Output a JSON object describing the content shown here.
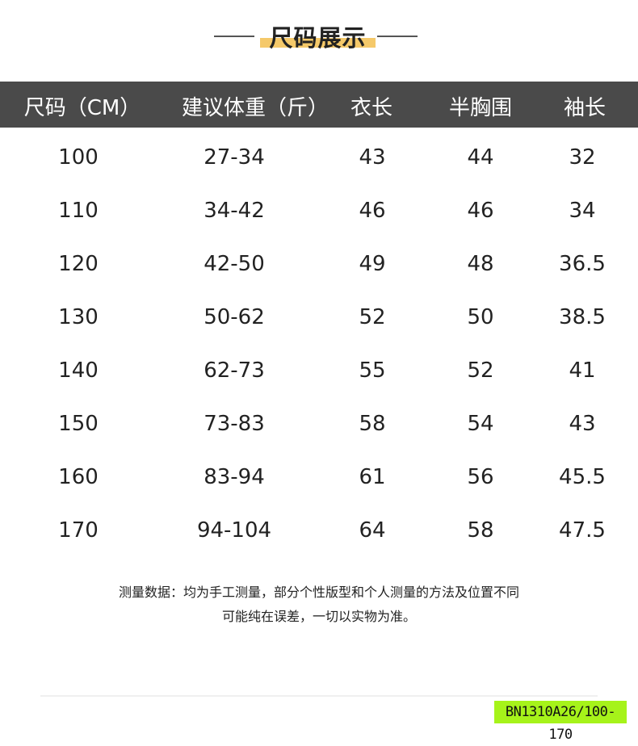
{
  "title": "尺码展示",
  "colors": {
    "header_bg": "#4a4a4a",
    "title_highlight": "#f5c96a",
    "badge_bg": "#a6f31a"
  },
  "table": {
    "headers": [
      "尺码（CM）",
      "建议体重（斤）",
      "衣长",
      "半胸围",
      "袖长"
    ],
    "rows": [
      [
        "100",
        "27-34",
        "43",
        "44",
        "32"
      ],
      [
        "110",
        "34-42",
        "46",
        "46",
        "34"
      ],
      [
        "120",
        "42-50",
        "49",
        "48",
        "36.5"
      ],
      [
        "130",
        "50-62",
        "52",
        "50",
        "38.5"
      ],
      [
        "140",
        "62-73",
        "55",
        "52",
        "41"
      ],
      [
        "150",
        "73-83",
        "58",
        "54",
        "43"
      ],
      [
        "160",
        "83-94",
        "61",
        "56",
        "45.5"
      ],
      [
        "170",
        "94-104",
        "64",
        "58",
        "47.5"
      ]
    ]
  },
  "note": {
    "line1": "测量数据：均为手工测量，部分个性版型和个人测量的方法及位置不同",
    "line2": "可能纯在误差，一切以实物为准。"
  },
  "badge": "BN1310A26/100-170"
}
